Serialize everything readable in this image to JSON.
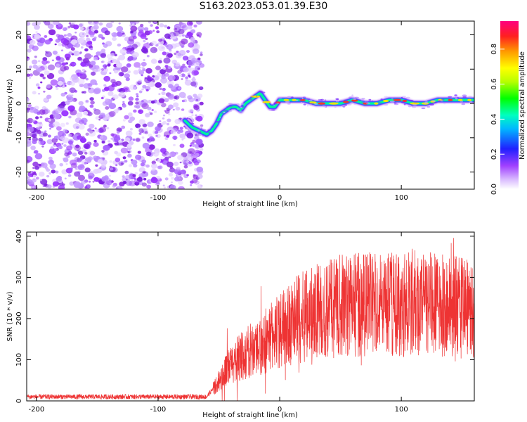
{
  "page": {
    "title": "S163.2023.053.01.39.E30"
  },
  "chart_data": [
    {
      "type": "heatmap",
      "xlabel": "Height of straight line (km)",
      "ylabel": "Frequency (Hz)",
      "xlim": [
        -208,
        160
      ],
      "ylim": [
        -25,
        24
      ],
      "xticks": [
        -200,
        -100,
        0,
        100
      ],
      "yticks": [
        20,
        10,
        0,
        -10,
        -20
      ],
      "noise_region_x": [
        -208,
        -64
      ],
      "signal_trace": {
        "x": [
          -78,
          -72,
          -66,
          -60,
          -56,
          -52,
          -48,
          -44,
          -40,
          -36,
          -32,
          -28,
          -24,
          -20,
          -16,
          -12,
          -8,
          -4,
          0,
          10,
          20,
          30,
          40,
          50,
          60,
          70,
          80,
          90,
          100,
          110,
          120,
          130,
          140,
          150,
          160
        ],
        "y": [
          -5,
          -7,
          -8,
          -9,
          -8,
          -6,
          -3,
          -2,
          -1,
          -1,
          -2,
          0,
          1,
          2,
          3,
          1,
          -1,
          -1,
          1,
          1,
          1,
          0,
          0,
          0,
          1,
          0,
          0,
          1,
          1,
          0,
          0,
          1,
          1,
          1,
          1
        ]
      },
      "colorbar": {
        "label": "Normalized spectral amplitude",
        "ticks": [
          "0.0",
          "0.2",
          "0.4",
          "0.6",
          "0.8"
        ],
        "range": [
          0,
          0.96
        ]
      }
    },
    {
      "type": "line",
      "xlabel": "Height of straight line (km)",
      "ylabel": "SNR (10 * v/v)",
      "xlim": [
        -208,
        160
      ],
      "ylim": [
        0,
        410
      ],
      "xticks": [
        -200,
        -100,
        0,
        100
      ],
      "yticks": [
        0,
        100,
        200,
        300,
        400
      ],
      "series": [
        {
          "name": "SNR",
          "color": "#ee3333",
          "x": [
            -208,
            -180,
            -150,
            -120,
            -90,
            -60,
            -52,
            -45,
            -38,
            -30,
            -20,
            -10,
            0,
            10,
            20,
            30,
            40,
            50,
            60,
            70,
            80,
            90,
            100,
            110,
            120,
            130,
            140,
            150,
            160
          ],
          "values": [
            10,
            10,
            10,
            10,
            10,
            10,
            40,
            70,
            95,
            110,
            130,
            150,
            170,
            190,
            205,
            215,
            225,
            230,
            235,
            235,
            235,
            240,
            235,
            240,
            235,
            230,
            235,
            225,
            220
          ]
        }
      ]
    }
  ]
}
